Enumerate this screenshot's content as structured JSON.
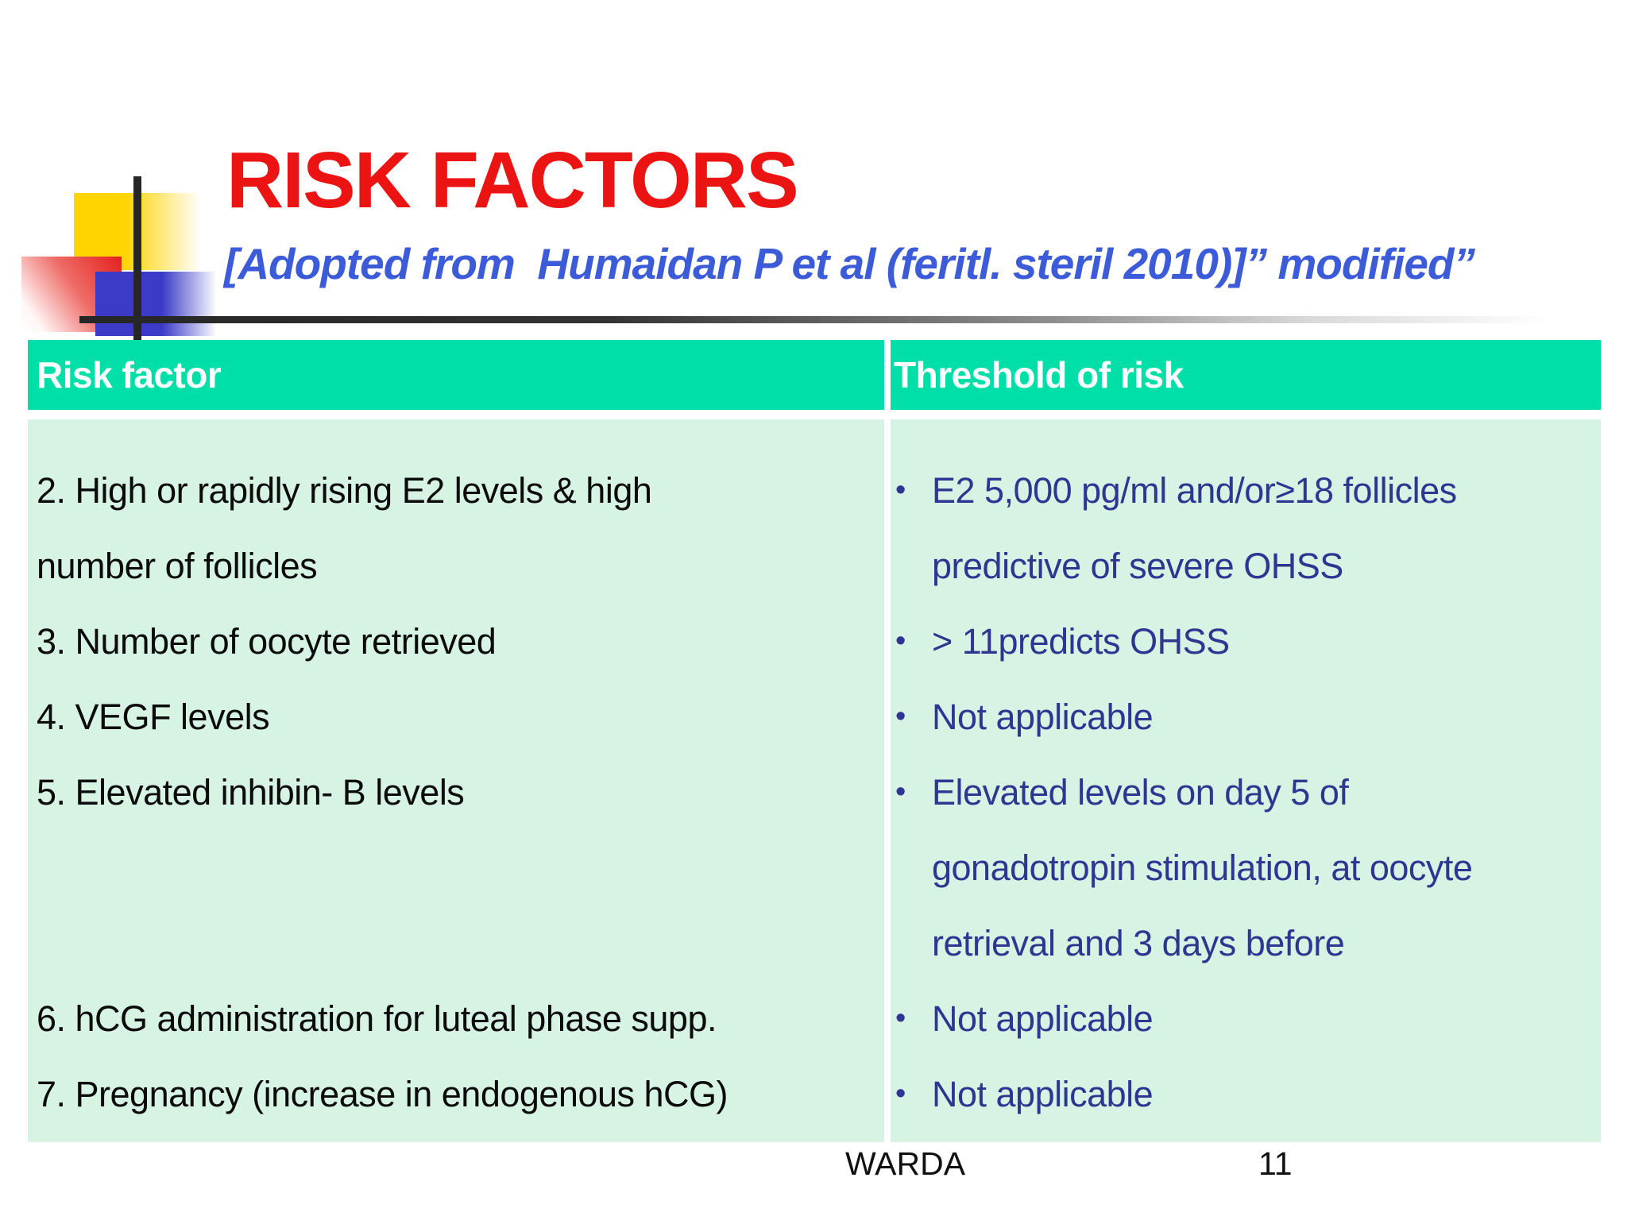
{
  "slide": {
    "title": "RISK FACTORS",
    "subtitle": "[Adopted from  Humaidan P et al (feritl. steril 2010)]” modified”",
    "footer": {
      "author": "WARDA",
      "page_number": "11"
    }
  },
  "colors": {
    "title_red": "#ec1313",
    "subtitle_blue": "#3c5bd9",
    "header_teal": "#00dfa7",
    "body_mint": "#d7f3e4",
    "threshold_navy": "#2e3691",
    "risk_text_black": "#0b0b0b",
    "decor_yellow": "#ffd400",
    "decor_red": "#e5201d",
    "decor_blue": "#3b3bc8",
    "decor_line_dark": "#262626"
  },
  "table": {
    "headers": {
      "risk_factor": "Risk factor",
      "threshold": "Threshold of risk"
    },
    "rows": [
      {
        "bullet": "•",
        "risk_factor_lines": [
          "2. High or rapidly rising E2 levels & high",
          "number of follicles"
        ],
        "threshold_lines": [
          "E2 5,000 pg/ml and/or≥18 follicles",
          "predictive of severe OHSS"
        ]
      },
      {
        "bullet": "•",
        "risk_factor_lines": [
          "3. Number of oocyte retrieved"
        ],
        "threshold_lines": [
          "> 11predicts OHSS"
        ]
      },
      {
        "bullet": "•",
        "risk_factor_lines": [
          "4. VEGF levels"
        ],
        "threshold_lines": [
          "Not applicable"
        ]
      },
      {
        "bullet": "•",
        "risk_factor_lines": [
          "5. Elevated inhibin- B levels"
        ],
        "threshold_lines": [
          "Elevated levels on day 5 of",
          "gonadotropin stimulation, at oocyte",
          "retrieval and 3 days before"
        ]
      },
      {
        "bullet": "•",
        "risk_factor_lines": [
          "6. hCG administration for luteal phase supp."
        ],
        "threshold_lines": [
          "Not applicable"
        ]
      },
      {
        "bullet": "•",
        "risk_factor_lines": [
          "7. Pregnancy (increase in endogenous hCG)"
        ],
        "threshold_lines": [
          "Not applicable"
        ]
      }
    ]
  }
}
